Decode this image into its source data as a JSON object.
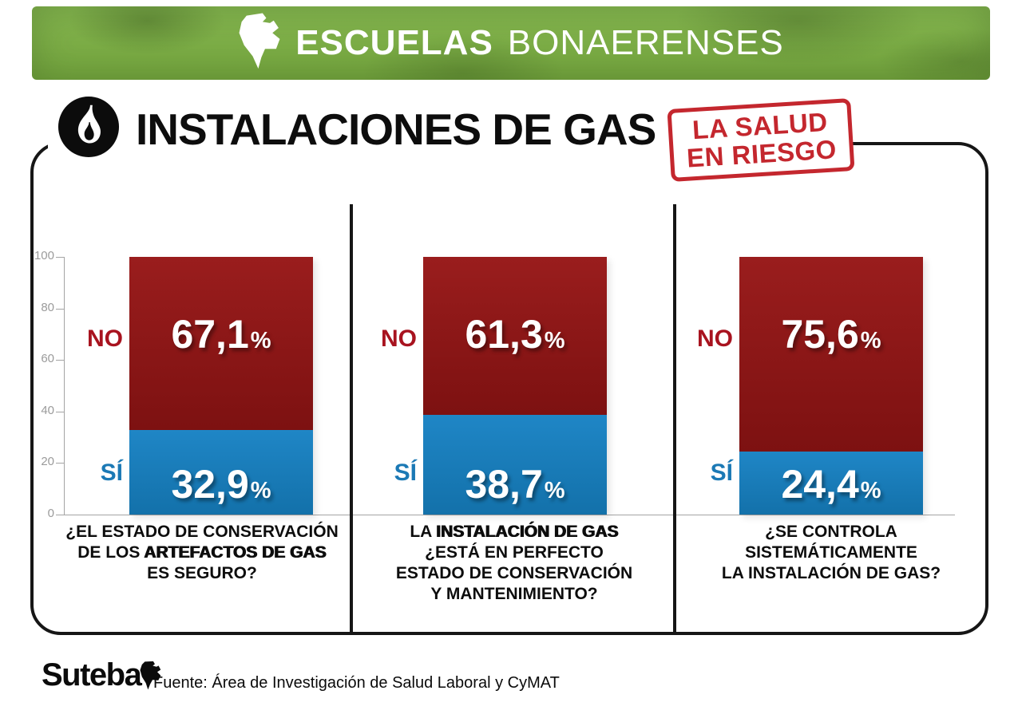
{
  "banner": {
    "title_bold": "ESCUELAS",
    "title_light": "BONAERENSES"
  },
  "header": {
    "title": "INSTALACIONES DE GAS",
    "stamp_line1": "LA SALUD",
    "stamp_line2": "EN RIESGO"
  },
  "footer": {
    "logo_text": "Suteba",
    "source": "Fuente: Área de Investigación de Salud Laboral y CyMAT"
  },
  "colors": {
    "banner_green": "#74a53e",
    "banner_green_light": "#86b750",
    "bar_red": "#7d1111",
    "bar_blue": "#1371aa",
    "no_label_red": "#a8131f",
    "si_label_blue": "#1b79b5",
    "stamp_red": "#c4272e"
  },
  "chart_data": {
    "type": "bar",
    "subtype": "stacked_100_percent_columns",
    "title": "INSTALACIONES DE GAS",
    "ylim": [
      0,
      100
    ],
    "yticks": [
      "100",
      "80",
      "60",
      "40",
      "20",
      "0"
    ],
    "percent_sign": "%",
    "legend": [
      "NO",
      "SÍ"
    ],
    "charts": [
      {
        "no_label": "NO",
        "si_label": "SÍ",
        "no_value": 67.1,
        "si_value": 32.9,
        "no_display": "67,1",
        "si_display": "32,9",
        "question": "¿EL ESTADO DE CONSERVACIÓN DE LOS ARTEFACTOS DE GAS ES SEGURO?",
        "question_lines": [
          {
            "normal": "¿EL ESTADO DE CONSERVACIÓN",
            "strong": ""
          },
          {
            "normal": "DE LOS ",
            "strong": "ARTEFACTOS DE GAS"
          },
          {
            "normal": "ES SEGURO?",
            "strong": ""
          }
        ]
      },
      {
        "no_label": "NO",
        "si_label": "SÍ",
        "no_value": 61.3,
        "si_value": 38.7,
        "no_display": "61,3",
        "si_display": "38,7",
        "question": "LA INSTALACIÓN DE GAS ¿ESTÁ EN PERFECTO ESTADO DE CONSERVACIÓN Y MANTENIMIENTO?",
        "question_lines": [
          {
            "normal": "LA ",
            "strong": "INSTALACIÓN DE GAS"
          },
          {
            "normal": "¿ESTÁ EN PERFECTO",
            "strong": ""
          },
          {
            "normal": "ESTADO DE CONSERVACIÓN",
            "strong": ""
          },
          {
            "normal": "Y MANTENIMIENTO?",
            "strong": ""
          }
        ]
      },
      {
        "no_label": "NO",
        "si_label": "SÍ",
        "no_value": 75.6,
        "si_value": 24.4,
        "no_display": "75,6",
        "si_display": "24,4",
        "question": "¿SE CONTROLA SISTEMÁTICAMENTE LA INSTALACIÓN DE GAS?",
        "question_lines": [
          {
            "normal": "¿SE CONTROLA",
            "strong": ""
          },
          {
            "normal": "SISTEMÁTICAMENTE",
            "strong": ""
          },
          {
            "normal": "LA INSTALACIÓN DE GAS?",
            "strong": ""
          }
        ]
      }
    ]
  }
}
